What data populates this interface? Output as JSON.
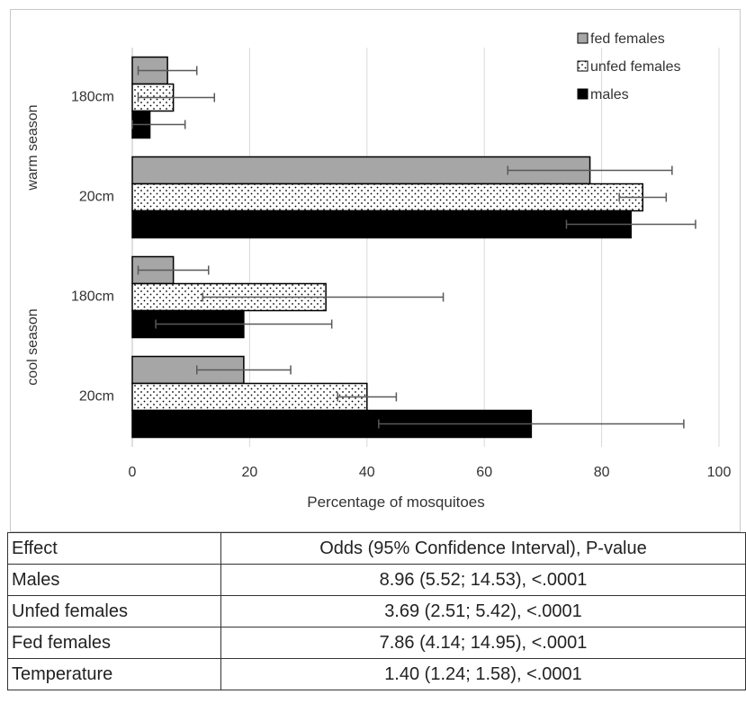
{
  "chart_data": {
    "type": "bar",
    "orientation": "horizontal",
    "xlabel": "Percentage of mosquitoes",
    "xlim": [
      0,
      100
    ],
    "xticks": [
      0,
      20,
      40,
      60,
      80,
      100
    ],
    "grid": "vertical",
    "legend_position": "top-right",
    "groups": [
      {
        "name": "warm season",
        "categories": [
          "180cm",
          "20cm"
        ]
      },
      {
        "name": "cool season",
        "categories": [
          "180cm",
          "20cm"
        ]
      }
    ],
    "series": [
      {
        "name": "fed females",
        "color": "#a6a6a6",
        "pattern": "solid",
        "values": [
          6,
          78,
          7,
          19
        ],
        "error_low": [
          1,
          64,
          1,
          11
        ],
        "error_high": [
          11,
          92,
          13,
          27
        ]
      },
      {
        "name": "unfed females",
        "color": "#ffffff",
        "pattern": "dots",
        "values": [
          7,
          87,
          33,
          40
        ],
        "error_low": [
          1,
          83,
          12,
          35
        ],
        "error_high": [
          14,
          91,
          53,
          45
        ]
      },
      {
        "name": "males",
        "color": "#000000",
        "pattern": "solid",
        "values": [
          3,
          85,
          19,
          68
        ],
        "error_low": [
          0,
          74,
          4,
          42
        ],
        "error_high": [
          9,
          96,
          34,
          94
        ]
      }
    ]
  },
  "table": {
    "headers": [
      "Effect",
      "Odds (95% Confidence Interval), P-value"
    ],
    "rows": [
      [
        "Males",
        "8.96 (5.52; 14.53), <.0001"
      ],
      [
        "Unfed females",
        "3.69 (2.51; 5.42), <.0001"
      ],
      [
        "Fed females",
        "7.86 (4.14; 14.95), <.0001"
      ],
      [
        "Temperature",
        "1.40 (1.24; 1.58), <.0001"
      ]
    ]
  }
}
